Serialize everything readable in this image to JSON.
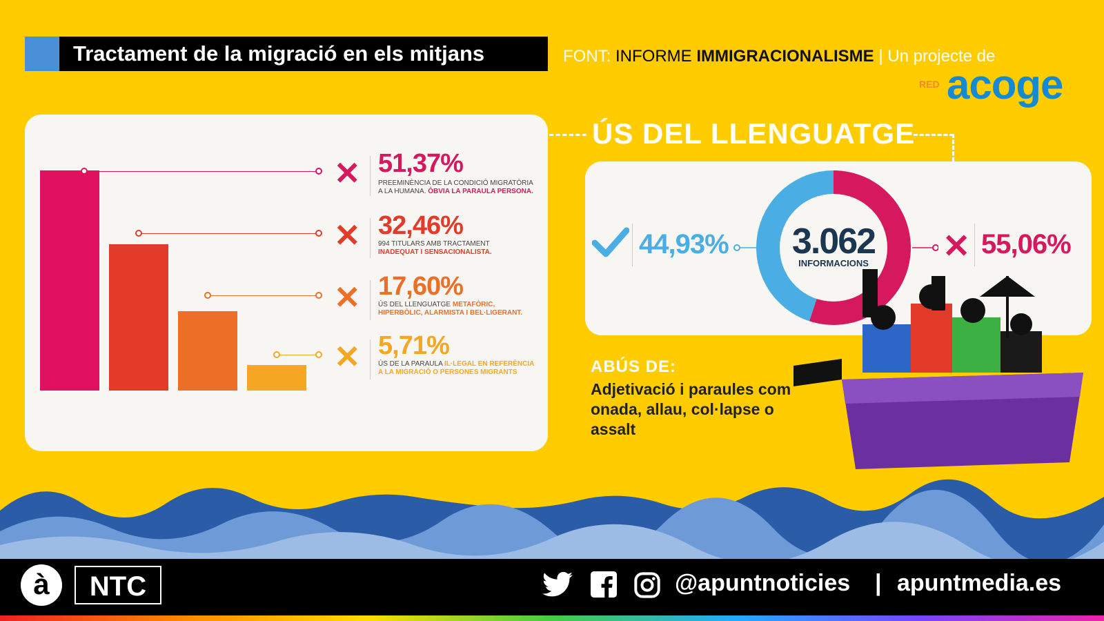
{
  "header": {
    "title": "Tractament de la migració en els mitjans",
    "source_label": "FONT:",
    "source_text": "INFORME",
    "source_bold": "IMMIGRACIONALISME",
    "project_text": "| Un projecte de",
    "logo_red": "RED",
    "logo_acoge": "acoge"
  },
  "chart_data": [
    {
      "type": "bar",
      "categories": [
        "PREEMINÈNCIA DE LA CONDICIÓ MIGRATÒRIA A LA HUMANA. ÒBVIA LA PARAULA PERSONA.",
        "994 TITULARS AMB TRACTAMENT INADEQUAT I SENSACIONALISTA.",
        "ÚS DEL LLENGUATGE METAFÒRIC, HIPERBÒLIC, ALARMISTA I BEL·LIGERANT.",
        "ÚS DE LA PARAULA IL·LEGAL EN REFERÈNCIA A LA MIGRACIÓ O PERSONES MIGRANTS"
      ],
      "values": [
        51.37,
        32.46,
        17.6,
        5.71
      ],
      "labels": [
        "51,37%",
        "32,46%",
        "17,60%",
        "5,71%"
      ],
      "colors": [
        "#E0115F",
        "#E23B2A",
        "#EC6E27",
        "#F5A623"
      ],
      "ylim": [
        0,
        55
      ],
      "grid": false
    },
    {
      "type": "pie",
      "title": "ÚS DEL LLENGUATGE",
      "center_value": "3.062",
      "center_label": "INFORMACIONS",
      "slices": [
        {
          "label": "44,93%",
          "value": 44.93,
          "color": "#4AAEE5",
          "kind": "check-icon"
        },
        {
          "label": "55,06%",
          "value": 55.06,
          "color": "#D6195E",
          "kind": "x-icon"
        }
      ]
    }
  ],
  "items": [
    {
      "pct": "51,37%",
      "line1": "PREEMINÈNCIA DE LA CONDICIÓ MIGRATÒRIA",
      "line2a": "A LA HUMANA. ",
      "line2b": "ÒBVIA LA PARAULA PERSONA."
    },
    {
      "pct": "32,46%",
      "line1": "994 TITULARS AMB TRACTAMENT",
      "line2a": "",
      "line2b": "INADEQUAT I SENSACIONALISTA."
    },
    {
      "pct": "17,60%",
      "line1a": "ÚS DEL LLENGUATGE ",
      "line1b": "METAFÒRIC,",
      "line2b": "HIPERBÒLIC, ALARMISTA I BEL·LIGERANT."
    },
    {
      "pct": "5,71%",
      "line1a": "ÚS DE LA PARAULA ",
      "line1b": "IL·LEGAL EN REFERÈNCIA",
      "line2b": "A LA MIGRACIÓ O PERSONES MIGRANTS"
    }
  ],
  "right": {
    "section_title": "ÚS DEL LLENGUATGE",
    "positive": "44,93%",
    "negative": "55,06%",
    "total": "3.062",
    "total_label": "INFORMACIONS",
    "abus_heading": "ABÚS DE:",
    "abus_text": "Adjetivació i paraules com onada, allau, col·lapse o assalt"
  },
  "footer": {
    "logo_a": "à",
    "logo_ntc": "NTC",
    "handle": "@apuntnoticies",
    "separator": "|",
    "website": "apuntmedia.es",
    "icons": [
      "twitter-icon",
      "facebook-icon",
      "instagram-icon"
    ]
  }
}
